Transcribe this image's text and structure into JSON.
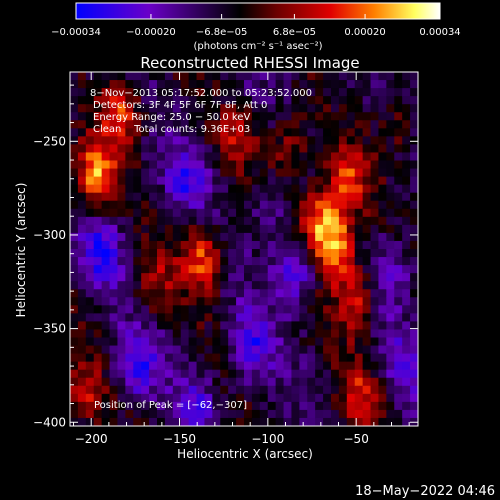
{
  "chart_data": {
    "type": "heatmap",
    "title": "Reconstructed RHESSI Image",
    "xlabel": "Heliocentric X (arcsec)",
    "ylabel": "Heliocentric Y (arcsec)",
    "xlim": [
      -212,
      -15
    ],
    "ylim": [
      -402,
      -213
    ],
    "x_ticks": [
      -200,
      -150,
      -100,
      -50
    ],
    "x_tick_labels": [
      "−200",
      "−150",
      "−100",
      "−50"
    ],
    "y_ticks": [
      -250,
      -300,
      -350,
      -400
    ],
    "y_tick_labels": [
      "−250",
      "−300",
      "−350",
      "−400"
    ],
    "colorbar": {
      "range": [
        -0.00034,
        0.00034
      ],
      "tick_labels": [
        "−0.00034",
        "−0.00020",
        "−6.8e−05",
        "6.8e−05",
        "0.00020",
        "0.00034"
      ],
      "tick_values": [
        -0.00034,
        -0.0002,
        -6.8e-05,
        6.8e-05,
        0.0002,
        0.00034
      ],
      "unit_label": "(photons cm⁻² s⁻¹ asec⁻²)",
      "colormap": [
        "#0000ff",
        "#6a00c8",
        "#000000",
        "#c80000",
        "#ff8000",
        "#ffff80",
        "#ffffff"
      ]
    },
    "annotations": [
      "8−Nov−2013 05:17:52.000 to 05:23:52.000",
      "Detectors: 3F 4F 5F 6F 7F 8F, Att 0",
      "Energy Range: 25.0 − 50.0 keV",
      "Clean    Total counts: 9.36E+03"
    ],
    "peak_label": "Position of Peak = [−62,−307]",
    "peak": [
      -62,
      -307
    ],
    "hotspots": [
      {
        "x": -198,
        "y": -268,
        "v": 0.00029
      },
      {
        "x": -183,
        "y": -235,
        "v": 0.00024
      },
      {
        "x": -137,
        "y": -312,
        "v": 0.00026
      },
      {
        "x": -116,
        "y": -248,
        "v": 0.00014
      },
      {
        "x": -88,
        "y": -253,
        "v": 0.00016
      },
      {
        "x": -72,
        "y": -290,
        "v": 0.00024
      },
      {
        "x": -62,
        "y": -307,
        "v": 0.00034
      },
      {
        "x": -55,
        "y": -272,
        "v": 0.00022
      },
      {
        "x": -50,
        "y": -336,
        "v": 0.00022
      },
      {
        "x": -48,
        "y": -386,
        "v": 0.00018
      },
      {
        "x": -26,
        "y": -240,
        "v": 0.00012
      },
      {
        "x": -205,
        "y": -385,
        "v": 0.00018
      },
      {
        "x": -165,
        "y": -325,
        "v": 0.00014
      },
      {
        "x": -175,
        "y": -370,
        "v": -0.0002
      },
      {
        "x": -110,
        "y": -360,
        "v": -0.00018
      },
      {
        "x": -145,
        "y": -270,
        "v": -0.00016
      },
      {
        "x": -85,
        "y": -320,
        "v": -0.00022
      },
      {
        "x": -30,
        "y": -320,
        "v": -0.00015
      },
      {
        "x": -195,
        "y": -310,
        "v": -0.00018
      },
      {
        "x": -100,
        "y": -290,
        "v": -0.0001
      },
      {
        "x": -140,
        "y": -392,
        "v": -0.00014
      },
      {
        "x": -25,
        "y": -370,
        "v": -0.00012
      }
    ]
  },
  "footer": {
    "timestamp": "18−May−2022 04:46"
  }
}
